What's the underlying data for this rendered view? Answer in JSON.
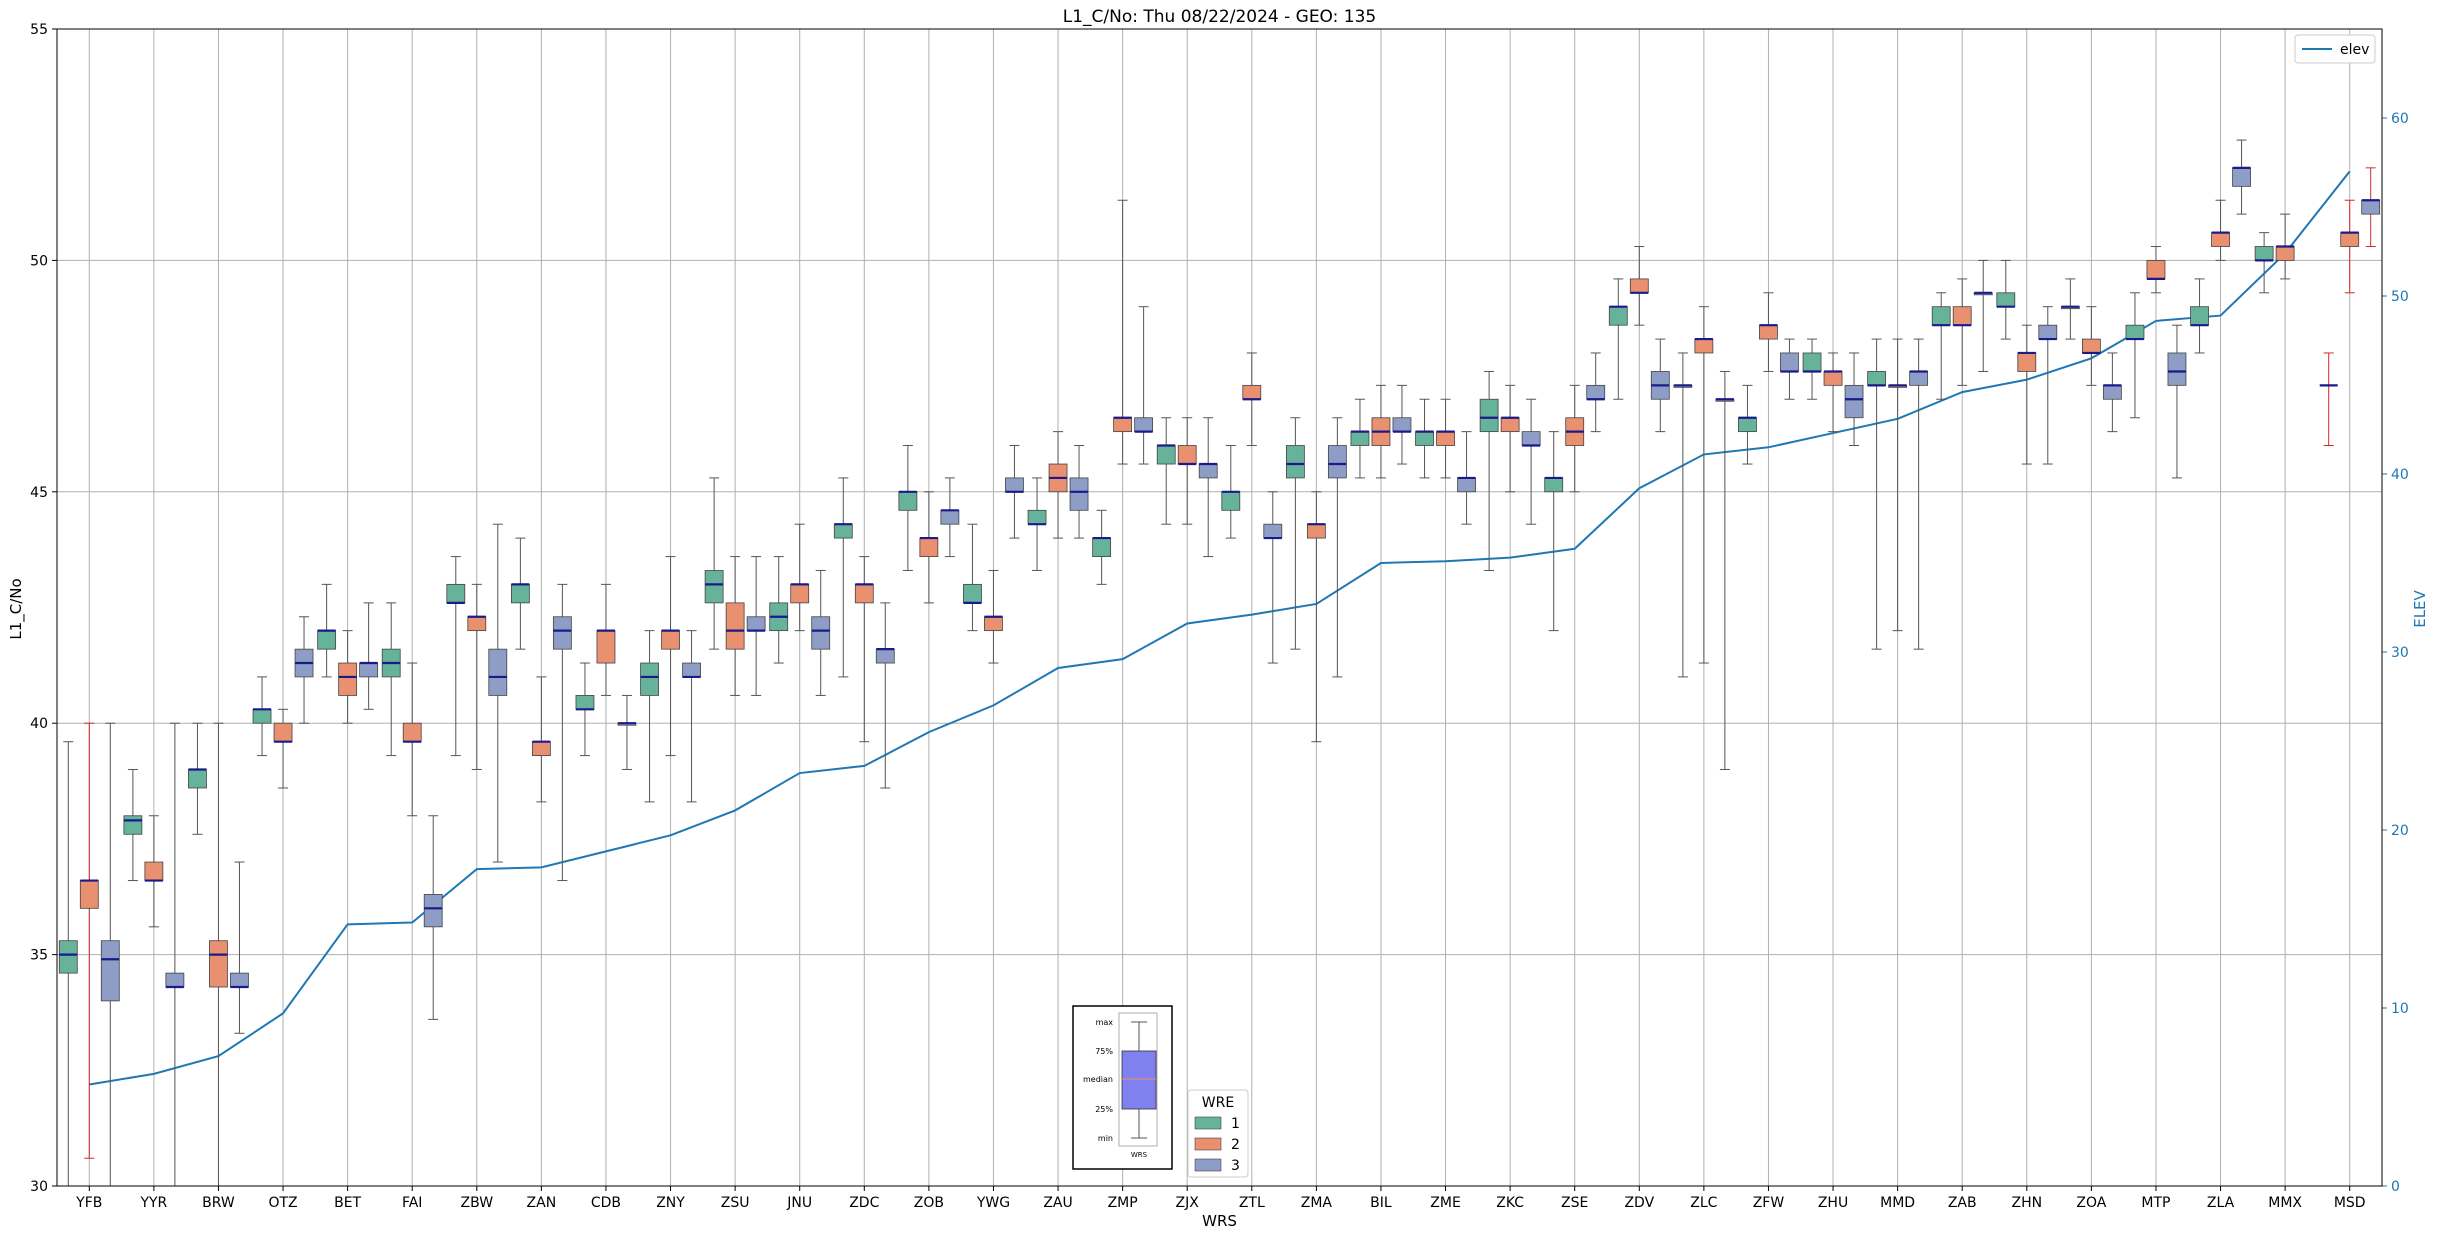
{
  "chart_data": {
    "type": "box",
    "title": "L1_C/No: Thu 08/22/2024 - GEO: 135",
    "xlabel": "WRS",
    "ylabel": "L1_C/No",
    "y2label": "ELEV",
    "ylim": [
      30,
      55
    ],
    "y2lim": [
      0,
      65
    ],
    "yticks": [
      30,
      35,
      40,
      45,
      50,
      55
    ],
    "y2ticks": [
      0,
      10,
      20,
      30,
      40,
      50,
      60
    ],
    "grid": true,
    "categories": [
      "YFB",
      "YYR",
      "BRW",
      "OTZ",
      "BET",
      "FAI",
      "ZBW",
      "ZAN",
      "CDB",
      "ZNY",
      "ZSU",
      "JNU",
      "ZDC",
      "ZOB",
      "YWG",
      "ZAU",
      "ZMP",
      "ZJX",
      "ZTL",
      "ZMA",
      "BIL",
      "ZME",
      "ZKC",
      "ZSE",
      "ZDV",
      "ZLC",
      "ZFW",
      "ZHU",
      "MMD",
      "ZAB",
      "ZHN",
      "ZOA",
      "MTP",
      "ZLA",
      "MMX",
      "MSD"
    ],
    "wre_colors": {
      "1": "#66b29a",
      "2": "#e8906f",
      "3": "#8d9dc6"
    },
    "elev_color": "#1f77b4",
    "elev_series": {
      "name": "elev",
      "values": [
        5.7,
        6.3,
        7.3,
        9.7,
        14.7,
        14.8,
        17.8,
        17.9,
        18.8,
        19.7,
        21.1,
        23.2,
        23.6,
        25.5,
        27.0,
        29.1,
        29.6,
        31.6,
        32.1,
        32.7,
        35.0,
        35.1,
        35.3,
        35.8,
        39.2,
        41.1,
        41.5,
        42.3,
        43.1,
        44.6,
        45.3,
        46.5,
        48.6,
        48.9,
        52.4,
        57.0
      ]
    },
    "boxes": [
      {
        "cat": "YFB",
        "wre": 1,
        "min": 30,
        "q1": 34.6,
        "median": 35.0,
        "q3": 35.3,
        "max": 39.6
      },
      {
        "cat": "YFB",
        "wre": 2,
        "min": 30.6,
        "q1": 36.0,
        "median": 36.6,
        "q3": 36.6,
        "max": 40.0,
        "special": "red"
      },
      {
        "cat": "YFB",
        "wre": 3,
        "min": 30,
        "q1": 34.0,
        "median": 34.9,
        "q3": 35.3,
        "max": 40.0
      },
      {
        "cat": "YYR",
        "wre": 1,
        "min": 36.6,
        "q1": 37.6,
        "median": 37.9,
        "q3": 38.0,
        "max": 39.0
      },
      {
        "cat": "YYR",
        "wre": 2,
        "min": 35.6,
        "q1": 36.6,
        "median": 36.6,
        "q3": 37.0,
        "max": 38.0
      },
      {
        "cat": "YYR",
        "wre": 3,
        "min": 30,
        "q1": 34.3,
        "median": 34.3,
        "q3": 34.6,
        "max": 40.0
      },
      {
        "cat": "BRW",
        "wre": 1,
        "min": 37.6,
        "q1": 38.6,
        "median": 39.0,
        "q3": 39.0,
        "max": 40.0
      },
      {
        "cat": "BRW",
        "wre": 2,
        "min": 30,
        "q1": 34.3,
        "median": 35.0,
        "q3": 35.3,
        "max": 40.0
      },
      {
        "cat": "BRW",
        "wre": 3,
        "min": 33.3,
        "q1": 34.3,
        "median": 34.3,
        "q3": 34.6,
        "max": 37.0
      },
      {
        "cat": "OTZ",
        "wre": 1,
        "min": 39.3,
        "q1": 40.0,
        "median": 40.3,
        "q3": 40.3,
        "max": 41.0
      },
      {
        "cat": "OTZ",
        "wre": 2,
        "min": 38.6,
        "q1": 39.6,
        "median": 39.6,
        "q3": 40.0,
        "max": 40.3
      },
      {
        "cat": "OTZ",
        "wre": 3,
        "min": 40.0,
        "q1": 41.0,
        "median": 41.3,
        "q3": 41.6,
        "max": 42.3
      },
      {
        "cat": "BET",
        "wre": 1,
        "min": 41.0,
        "q1": 41.6,
        "median": 42.0,
        "q3": 42.0,
        "max": 43.0
      },
      {
        "cat": "BET",
        "wre": 2,
        "min": 40.0,
        "q1": 40.6,
        "median": 41.0,
        "q3": 41.3,
        "max": 42.0
      },
      {
        "cat": "BET",
        "wre": 3,
        "min": 40.3,
        "q1": 41.0,
        "median": 41.3,
        "q3": 41.3,
        "max": 42.6
      },
      {
        "cat": "FAI",
        "wre": 1,
        "min": 39.3,
        "q1": 41.0,
        "median": 41.3,
        "q3": 41.6,
        "max": 42.6
      },
      {
        "cat": "FAI",
        "wre": 2,
        "min": 38.0,
        "q1": 39.6,
        "median": 39.6,
        "q3": 40.0,
        "max": 41.3
      },
      {
        "cat": "FAI",
        "wre": 3,
        "min": 33.6,
        "q1": 35.6,
        "median": 36.0,
        "q3": 36.3,
        "max": 38.0
      },
      {
        "cat": "ZBW",
        "wre": 1,
        "min": 39.3,
        "q1": 42.6,
        "median": 42.6,
        "q3": 43.0,
        "max": 43.6
      },
      {
        "cat": "ZBW",
        "wre": 2,
        "min": 39.0,
        "q1": 42.0,
        "median": 42.3,
        "q3": 42.3,
        "max": 43.0
      },
      {
        "cat": "ZBW",
        "wre": 3,
        "min": 37.0,
        "q1": 40.6,
        "median": 41.0,
        "q3": 41.6,
        "max": 44.3
      },
      {
        "cat": "ZAN",
        "wre": 1,
        "min": 41.6,
        "q1": 42.6,
        "median": 43.0,
        "q3": 43.0,
        "max": 44.0
      },
      {
        "cat": "ZAN",
        "wre": 2,
        "min": 38.3,
        "q1": 39.3,
        "median": 39.6,
        "q3": 39.6,
        "max": 41.0
      },
      {
        "cat": "ZAN",
        "wre": 3,
        "min": 36.6,
        "q1": 41.6,
        "median": 42.0,
        "q3": 42.3,
        "max": 43.0
      },
      {
        "cat": "CDB",
        "wre": 1,
        "min": 39.3,
        "q1": 40.3,
        "median": 40.3,
        "q3": 40.6,
        "max": 41.3
      },
      {
        "cat": "CDB",
        "wre": 2,
        "min": 40.6,
        "q1": 41.3,
        "median": 42.0,
        "q3": 42.0,
        "max": 43.0
      },
      {
        "cat": "CDB",
        "wre": 3,
        "min": 39.0,
        "q1": 40.0,
        "median": 40.0,
        "q3": 40.0,
        "max": 40.6
      },
      {
        "cat": "ZNY",
        "wre": 1,
        "min": 38.3,
        "q1": 40.6,
        "median": 41.0,
        "q3": 41.3,
        "max": 42.0
      },
      {
        "cat": "ZNY",
        "wre": 2,
        "min": 39.3,
        "q1": 41.6,
        "median": 42.0,
        "q3": 42.0,
        "max": 43.6
      },
      {
        "cat": "ZNY",
        "wre": 3,
        "min": 38.3,
        "q1": 41.0,
        "median": 41.0,
        "q3": 41.3,
        "max": 42.0
      },
      {
        "cat": "ZSU",
        "wre": 1,
        "min": 41.6,
        "q1": 42.6,
        "median": 43.0,
        "q3": 43.3,
        "max": 45.3
      },
      {
        "cat": "ZSU",
        "wre": 2,
        "min": 40.6,
        "q1": 41.6,
        "median": 42.0,
        "q3": 42.6,
        "max": 43.6
      },
      {
        "cat": "ZSU",
        "wre": 3,
        "min": 40.6,
        "q1": 42.0,
        "median": 42.0,
        "q3": 42.3,
        "max": 43.6
      },
      {
        "cat": "JNU",
        "wre": 1,
        "min": 41.3,
        "q1": 42.0,
        "median": 42.3,
        "q3": 42.6,
        "max": 43.6
      },
      {
        "cat": "JNU",
        "wre": 2,
        "min": 42.0,
        "q1": 42.6,
        "median": 43.0,
        "q3": 43.0,
        "max": 44.3
      },
      {
        "cat": "JNU",
        "wre": 3,
        "min": 40.6,
        "q1": 41.6,
        "median": 42.0,
        "q3": 42.3,
        "max": 43.3
      },
      {
        "cat": "ZDC",
        "wre": 1,
        "min": 41.0,
        "q1": 44.0,
        "median": 44.3,
        "q3": 44.3,
        "max": 45.3
      },
      {
        "cat": "ZDC",
        "wre": 2,
        "min": 39.6,
        "q1": 42.6,
        "median": 43.0,
        "q3": 43.0,
        "max": 43.6
      },
      {
        "cat": "ZDC",
        "wre": 3,
        "min": 38.6,
        "q1": 41.3,
        "median": 41.6,
        "q3": 41.6,
        "max": 42.6
      },
      {
        "cat": "ZOB",
        "wre": 1,
        "min": 43.3,
        "q1": 44.6,
        "median": 45.0,
        "q3": 45.0,
        "max": 46.0
      },
      {
        "cat": "ZOB",
        "wre": 2,
        "min": 42.6,
        "q1": 43.6,
        "median": 44.0,
        "q3": 44.0,
        "max": 45.0
      },
      {
        "cat": "ZOB",
        "wre": 3,
        "min": 43.6,
        "q1": 44.3,
        "median": 44.6,
        "q3": 44.6,
        "max": 45.3
      },
      {
        "cat": "YWG",
        "wre": 1,
        "min": 42.0,
        "q1": 42.6,
        "median": 42.6,
        "q3": 43.0,
        "max": 44.3
      },
      {
        "cat": "YWG",
        "wre": 2,
        "min": 41.3,
        "q1": 42.0,
        "median": 42.3,
        "q3": 42.3,
        "max": 43.3
      },
      {
        "cat": "YWG",
        "wre": 3,
        "min": 44.0,
        "q1": 45.0,
        "median": 45.0,
        "q3": 45.3,
        "max": 46.0
      },
      {
        "cat": "ZAU",
        "wre": 1,
        "min": 43.3,
        "q1": 44.3,
        "median": 44.3,
        "q3": 44.6,
        "max": 45.3
      },
      {
        "cat": "ZAU",
        "wre": 2,
        "min": 44.0,
        "q1": 45.0,
        "median": 45.3,
        "q3": 45.6,
        "max": 46.3
      },
      {
        "cat": "ZAU",
        "wre": 3,
        "min": 44.0,
        "q1": 44.6,
        "median": 45.0,
        "q3": 45.3,
        "max": 46.0
      },
      {
        "cat": "ZMP",
        "wre": 1,
        "min": 43.0,
        "q1": 43.6,
        "median": 44.0,
        "q3": 44.0,
        "max": 44.6
      },
      {
        "cat": "ZMP",
        "wre": 2,
        "min": 45.6,
        "q1": 46.3,
        "median": 46.6,
        "q3": 46.6,
        "max": 51.3
      },
      {
        "cat": "ZMP",
        "wre": 3,
        "min": 45.6,
        "q1": 46.3,
        "median": 46.3,
        "q3": 46.6,
        "max": 49.0
      },
      {
        "cat": "ZJX",
        "wre": 1,
        "min": 44.3,
        "q1": 45.6,
        "median": 46.0,
        "q3": 46.0,
        "max": 46.6
      },
      {
        "cat": "ZJX",
        "wre": 2,
        "min": 44.3,
        "q1": 45.6,
        "median": 45.6,
        "q3": 46.0,
        "max": 46.6
      },
      {
        "cat": "ZJX",
        "wre": 3,
        "min": 43.6,
        "q1": 45.3,
        "median": 45.6,
        "q3": 45.6,
        "max": 46.6
      },
      {
        "cat": "ZTL",
        "wre": 1,
        "min": 44.0,
        "q1": 44.6,
        "median": 45.0,
        "q3": 45.0,
        "max": 46.0
      },
      {
        "cat": "ZTL",
        "wre": 2,
        "min": 46.0,
        "q1": 47.0,
        "median": 47.0,
        "q3": 47.3,
        "max": 48.0
      },
      {
        "cat": "ZTL",
        "wre": 3,
        "min": 41.3,
        "q1": 44.0,
        "median": 44.0,
        "q3": 44.3,
        "max": 45.0
      },
      {
        "cat": "ZMA",
        "wre": 1,
        "min": 41.6,
        "q1": 45.3,
        "median": 45.6,
        "q3": 46.0,
        "max": 46.6
      },
      {
        "cat": "ZMA",
        "wre": 2,
        "min": 39.6,
        "q1": 44.0,
        "median": 44.3,
        "q3": 44.3,
        "max": 45.0
      },
      {
        "cat": "ZMA",
        "wre": 3,
        "min": 41.0,
        "q1": 45.3,
        "median": 45.6,
        "q3": 46.0,
        "max": 46.6
      },
      {
        "cat": "BIL",
        "wre": 1,
        "min": 45.3,
        "q1": 46.0,
        "median": 46.3,
        "q3": 46.3,
        "max": 47.0
      },
      {
        "cat": "BIL",
        "wre": 2,
        "min": 45.3,
        "q1": 46.0,
        "median": 46.3,
        "q3": 46.6,
        "max": 47.3
      },
      {
        "cat": "BIL",
        "wre": 3,
        "min": 45.6,
        "q1": 46.3,
        "median": 46.3,
        "q3": 46.6,
        "max": 47.3
      },
      {
        "cat": "ZME",
        "wre": 1,
        "min": 45.3,
        "q1": 46.0,
        "median": 46.3,
        "q3": 46.3,
        "max": 47.0
      },
      {
        "cat": "ZME",
        "wre": 2,
        "min": 45.3,
        "q1": 46.0,
        "median": 46.3,
        "q3": 46.3,
        "max": 47.0
      },
      {
        "cat": "ZME",
        "wre": 3,
        "min": 44.3,
        "q1": 45.0,
        "median": 45.3,
        "q3": 45.3,
        "max": 46.3
      },
      {
        "cat": "ZKC",
        "wre": 1,
        "min": 43.3,
        "q1": 46.3,
        "median": 46.6,
        "q3": 47.0,
        "max": 47.6
      },
      {
        "cat": "ZKC",
        "wre": 2,
        "min": 45.0,
        "q1": 46.3,
        "median": 46.6,
        "q3": 46.6,
        "max": 47.3
      },
      {
        "cat": "ZKC",
        "wre": 3,
        "min": 44.3,
        "q1": 46.0,
        "median": 46.0,
        "q3": 46.3,
        "max": 47.0
      },
      {
        "cat": "ZSE",
        "wre": 1,
        "min": 42.0,
        "q1": 45.0,
        "median": 45.3,
        "q3": 45.3,
        "max": 46.3
      },
      {
        "cat": "ZSE",
        "wre": 2,
        "min": 45.0,
        "q1": 46.0,
        "median": 46.3,
        "q3": 46.6,
        "max": 47.3
      },
      {
        "cat": "ZSE",
        "wre": 3,
        "min": 46.3,
        "q1": 47.0,
        "median": 47.0,
        "q3": 47.3,
        "max": 48.0
      },
      {
        "cat": "ZDV",
        "wre": 1,
        "min": 47.0,
        "q1": 48.6,
        "median": 49.0,
        "q3": 49.0,
        "max": 49.6
      },
      {
        "cat": "ZDV",
        "wre": 2,
        "min": 48.6,
        "q1": 49.3,
        "median": 49.3,
        "q3": 49.6,
        "max": 50.3
      },
      {
        "cat": "ZDV",
        "wre": 3,
        "min": 46.3,
        "q1": 47.0,
        "median": 47.3,
        "q3": 47.6,
        "max": 48.3
      },
      {
        "cat": "ZLC",
        "wre": 1,
        "min": 41.0,
        "q1": 47.3,
        "median": 47.3,
        "q3": 47.3,
        "max": 48.0
      },
      {
        "cat": "ZLC",
        "wre": 2,
        "min": 41.3,
        "q1": 48.0,
        "median": 48.3,
        "q3": 48.3,
        "max": 49.0
      },
      {
        "cat": "ZLC",
        "wre": 3,
        "min": 39.0,
        "q1": 47.0,
        "median": 47.0,
        "q3": 47.0,
        "max": 47.6
      },
      {
        "cat": "ZFW",
        "wre": 1,
        "min": 45.6,
        "q1": 46.3,
        "median": 46.6,
        "q3": 46.6,
        "max": 47.3
      },
      {
        "cat": "ZFW",
        "wre": 2,
        "min": 47.6,
        "q1": 48.3,
        "median": 48.6,
        "q3": 48.6,
        "max": 49.3
      },
      {
        "cat": "ZFW",
        "wre": 3,
        "min": 47.0,
        "q1": 47.6,
        "median": 47.6,
        "q3": 48.0,
        "max": 48.3
      },
      {
        "cat": "ZHU",
        "wre": 1,
        "min": 47.0,
        "q1": 47.6,
        "median": 47.6,
        "q3": 48.0,
        "max": 48.3
      },
      {
        "cat": "ZHU",
        "wre": 2,
        "min": 46.3,
        "q1": 47.3,
        "median": 47.6,
        "q3": 47.6,
        "max": 48.0
      },
      {
        "cat": "ZHU",
        "wre": 3,
        "min": 46.0,
        "q1": 46.6,
        "median": 47.0,
        "q3": 47.3,
        "max": 48.0
      },
      {
        "cat": "MMD",
        "wre": 1,
        "min": 41.6,
        "q1": 47.3,
        "median": 47.3,
        "q3": 47.6,
        "max": 48.3
      },
      {
        "cat": "MMD",
        "wre": 2,
        "min": 42.0,
        "q1": 47.3,
        "median": 47.3,
        "q3": 47.3,
        "max": 48.3
      },
      {
        "cat": "MMD",
        "wre": 3,
        "min": 41.6,
        "q1": 47.3,
        "median": 47.6,
        "q3": 47.6,
        "max": 48.3
      },
      {
        "cat": "ZAB",
        "wre": 1,
        "min": 47.0,
        "q1": 48.6,
        "median": 48.6,
        "q3": 49.0,
        "max": 49.3
      },
      {
        "cat": "ZAB",
        "wre": 2,
        "min": 47.3,
        "q1": 48.6,
        "median": 48.6,
        "q3": 49.0,
        "max": 49.6
      },
      {
        "cat": "ZAB",
        "wre": 3,
        "min": 47.6,
        "q1": 49.3,
        "median": 49.3,
        "q3": 49.3,
        "max": 50.0
      },
      {
        "cat": "ZHN",
        "wre": 1,
        "min": 48.3,
        "q1": 49.0,
        "median": 49.0,
        "q3": 49.3,
        "max": 50.0
      },
      {
        "cat": "ZHN",
        "wre": 2,
        "min": 45.6,
        "q1": 47.6,
        "median": 48.0,
        "q3": 48.0,
        "max": 48.6
      },
      {
        "cat": "ZHN",
        "wre": 3,
        "min": 45.6,
        "q1": 48.3,
        "median": 48.3,
        "q3": 48.6,
        "max": 49.0
      },
      {
        "cat": "ZOA",
        "wre": 1,
        "min": 48.3,
        "q1": 49.0,
        "median": 49.0,
        "q3": 49.0,
        "max": 49.6
      },
      {
        "cat": "ZOA",
        "wre": 2,
        "min": 47.3,
        "q1": 48.0,
        "median": 48.0,
        "q3": 48.3,
        "max": 49.0
      },
      {
        "cat": "ZOA",
        "wre": 3,
        "min": 46.3,
        "q1": 47.0,
        "median": 47.3,
        "q3": 47.3,
        "max": 48.0
      },
      {
        "cat": "MTP",
        "wre": 1,
        "min": 46.6,
        "q1": 48.3,
        "median": 48.3,
        "q3": 48.6,
        "max": 49.3
      },
      {
        "cat": "MTP",
        "wre": 2,
        "min": 49.3,
        "q1": 49.6,
        "median": 49.6,
        "q3": 50.0,
        "max": 50.3
      },
      {
        "cat": "MTP",
        "wre": 3,
        "min": 45.3,
        "q1": 47.3,
        "median": 47.6,
        "q3": 48.0,
        "max": 48.6
      },
      {
        "cat": "ZLA",
        "wre": 1,
        "min": 48.0,
        "q1": 48.6,
        "median": 48.6,
        "q3": 49.0,
        "max": 49.6
      },
      {
        "cat": "ZLA",
        "wre": 2,
        "min": 50.0,
        "q1": 50.3,
        "median": 50.6,
        "q3": 50.6,
        "max": 51.3
      },
      {
        "cat": "ZLA",
        "wre": 3,
        "min": 51.0,
        "q1": 51.6,
        "median": 52.0,
        "q3": 52.0,
        "max": 52.6
      },
      {
        "cat": "MMX",
        "wre": 1,
        "min": 49.3,
        "q1": 50.0,
        "median": 50.0,
        "q3": 50.3,
        "max": 50.6
      },
      {
        "cat": "MMX",
        "wre": 2,
        "min": 49.6,
        "q1": 50.0,
        "median": 50.3,
        "q3": 50.3,
        "max": 51.0
      },
      {
        "cat": "MMX",
        "wre": 3,
        "min": null,
        "q1": null,
        "median": null,
        "q3": null,
        "max": null
      },
      {
        "cat": "MSD",
        "wre": 1,
        "min": 46.0,
        "q1": 47.3,
        "median": 47.3,
        "q3": 47.3,
        "max": 48.0,
        "special": "red"
      },
      {
        "cat": "MSD",
        "wre": 2,
        "min": 49.3,
        "q1": 50.3,
        "median": 50.6,
        "q3": 50.6,
        "max": 51.3,
        "special": "red"
      },
      {
        "cat": "MSD",
        "wre": 3,
        "min": 50.3,
        "q1": 51.0,
        "median": 51.3,
        "q3": 51.3,
        "max": 52.0,
        "special": "red"
      }
    ],
    "legend_wre": {
      "title": "WRE",
      "entries": [
        "1",
        "2",
        "3"
      ],
      "placement": "bottom-center"
    },
    "legend_elev": {
      "entries": [
        "elev"
      ],
      "placement": "top-right"
    },
    "key_box": {
      "labels": [
        "max",
        "75%",
        "median",
        "25%",
        "min"
      ],
      "xlabel": "WRS"
    }
  }
}
